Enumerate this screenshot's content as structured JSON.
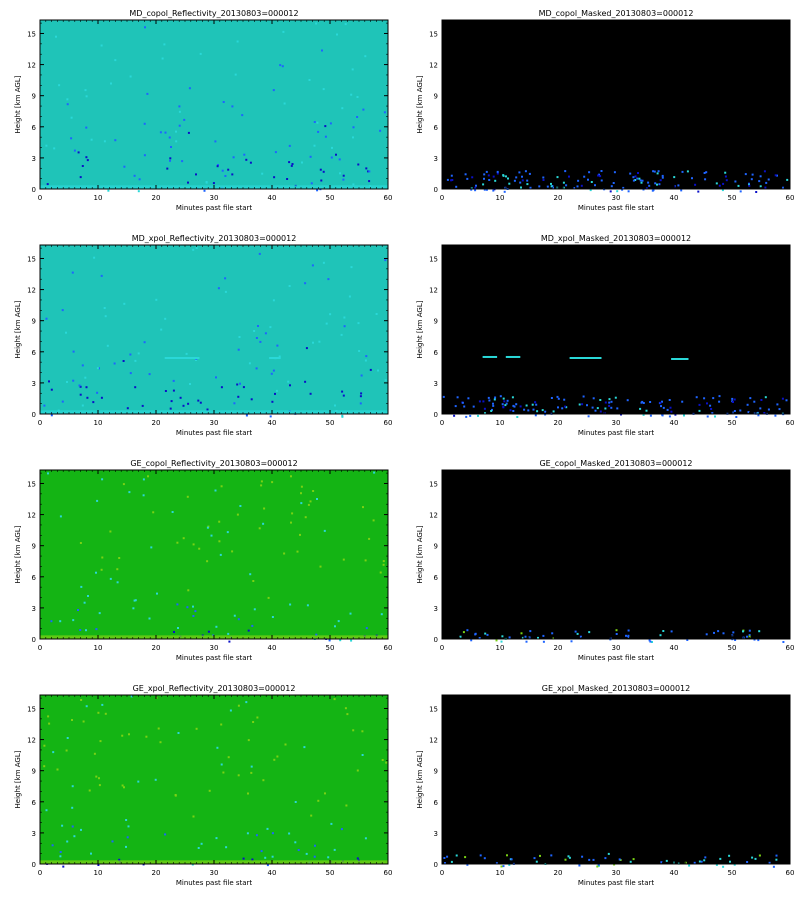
{
  "colors": {
    "background": "#ffffff",
    "axis": "#000000",
    "masked_background": "#000000",
    "md_base": "#1fc4b8",
    "ge_base": "#14b414",
    "deep_blue": "#0a10c8",
    "mid_blue": "#1e64ff",
    "light_cyan": "#2ad8d8",
    "bright_green": "#7ad214"
  },
  "chart_data": [
    {
      "type": "heatmap",
      "title": "MD_copol_Reflectivity_20130803=000012",
      "xlabel": "Minutes past file start",
      "ylabel": "Height [km AGL]",
      "xlim": [
        0,
        60
      ],
      "ylim": [
        0,
        16.3
      ],
      "xticks": [
        "0",
        "10",
        "20",
        "30",
        "40",
        "50",
        "60"
      ],
      "yticks": [
        "0",
        "3",
        "6",
        "9",
        "12",
        "15"
      ],
      "scheme": "md_raw",
      "background": "#1fc4b8",
      "features": []
    },
    {
      "type": "heatmap",
      "title": "MD_copol_Masked_20130803=000012",
      "xlabel": "Minutes past file start",
      "ylabel": "Height [km AGL]",
      "xlim": [
        0,
        60
      ],
      "ylim": [
        0,
        16.3
      ],
      "xticks": [
        "0",
        "10",
        "20",
        "30",
        "40",
        "50",
        "60"
      ],
      "yticks": [
        "0",
        "3",
        "6",
        "9",
        "12",
        "15"
      ],
      "scheme": "md_masked",
      "background": "#000000",
      "features": []
    },
    {
      "type": "heatmap",
      "title": "MD_xpol_Reflectivity_20130803=000012",
      "xlabel": "Minutes past file start",
      "ylabel": "Height [km AGL]",
      "xlim": [
        0,
        60
      ],
      "ylim": [
        0,
        16.3
      ],
      "xticks": [
        "0",
        "10",
        "20",
        "30",
        "40",
        "50",
        "60"
      ],
      "yticks": [
        "0",
        "3",
        "6",
        "9",
        "12",
        "15"
      ],
      "scheme": "md_raw",
      "background": "#1fc4b8",
      "features": [
        {
          "x_start": 21.5,
          "x_end": 27.5,
          "height": 5.4
        },
        {
          "x_start": 39.5,
          "x_end": 41.5,
          "height": 5.4
        }
      ]
    },
    {
      "type": "heatmap",
      "title": "MD_xpol_Masked_20130803=000012",
      "xlabel": "Minutes past file start",
      "ylabel": "Height [km AGL]",
      "xlim": [
        0,
        60
      ],
      "ylim": [
        0,
        16.3
      ],
      "xticks": [
        "0",
        "10",
        "20",
        "30",
        "40",
        "50",
        "60"
      ],
      "yticks": [
        "0",
        "3",
        "6",
        "9",
        "12",
        "15"
      ],
      "scheme": "md_masked",
      "background": "#000000",
      "features": [
        {
          "x_start": 7,
          "x_end": 9.5,
          "height": 5.5
        },
        {
          "x_start": 11,
          "x_end": 13.5,
          "height": 5.5
        },
        {
          "x_start": 22,
          "x_end": 27.5,
          "height": 5.4
        },
        {
          "x_start": 39.5,
          "x_end": 42.5,
          "height": 5.3
        }
      ]
    },
    {
      "type": "heatmap",
      "title": "GE_copol_Reflectivity_20130803=000012",
      "xlabel": "Minutes past file start",
      "ylabel": "Height [km AGL]",
      "xlim": [
        0,
        60
      ],
      "ylim": [
        0,
        16.3
      ],
      "xticks": [
        "0",
        "10",
        "20",
        "30",
        "40",
        "50",
        "60"
      ],
      "yticks": [
        "0",
        "3",
        "6",
        "9",
        "12",
        "15"
      ],
      "scheme": "ge_raw",
      "background": "#14b414",
      "features": []
    },
    {
      "type": "heatmap",
      "title": "GE_copol_Masked_20130803=000012",
      "xlabel": "Minutes past file start",
      "ylabel": "Height [km AGL]",
      "xlim": [
        0,
        60
      ],
      "ylim": [
        0,
        16.3
      ],
      "xticks": [
        "0",
        "10",
        "20",
        "30",
        "40",
        "50",
        "60"
      ],
      "yticks": [
        "0",
        "3",
        "6",
        "9",
        "12",
        "15"
      ],
      "scheme": "ge_masked",
      "background": "#000000",
      "features": []
    },
    {
      "type": "heatmap",
      "title": "GE_xpol_Reflectivity_20130803=000012",
      "xlabel": "Minutes past file start",
      "ylabel": "Height [km AGL]",
      "xlim": [
        0,
        60
      ],
      "ylim": [
        0,
        16.3
      ],
      "xticks": [
        "0",
        "10",
        "20",
        "30",
        "40",
        "50",
        "60"
      ],
      "yticks": [
        "0",
        "3",
        "6",
        "9",
        "12",
        "15"
      ],
      "scheme": "ge_raw",
      "background": "#14b414",
      "features": []
    },
    {
      "type": "heatmap",
      "title": "GE_xpol_Masked_20130803=000012",
      "xlabel": "Minutes past file start",
      "ylabel": "Height [km AGL]",
      "xlim": [
        0,
        60
      ],
      "ylim": [
        0,
        16.3
      ],
      "xticks": [
        "0",
        "10",
        "20",
        "30",
        "40",
        "50",
        "60"
      ],
      "yticks": [
        "0",
        "3",
        "6",
        "9",
        "12",
        "15"
      ],
      "scheme": "ge_masked",
      "background": "#000000",
      "features": []
    }
  ]
}
